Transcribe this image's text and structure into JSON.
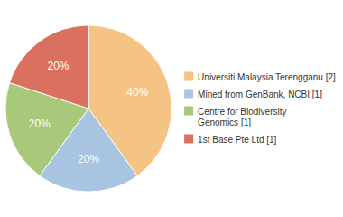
{
  "chart_data": {
    "type": "pie",
    "categories": [
      "Universiti Malaysia Terengganu [2]",
      "Mined from GenBank, NCBI [1]",
      "Centre for Biodiversity\nGenomics [1]",
      "1st Base Pte Ltd [1]"
    ],
    "values": [
      40,
      20,
      20,
      20
    ],
    "value_labels": [
      "40%",
      "20%",
      "20%",
      "20%"
    ],
    "colors": [
      "#F5C384",
      "#A8C4E0",
      "#A8C87A",
      "#D97060"
    ],
    "data_labels": true,
    "legend": "right"
  }
}
